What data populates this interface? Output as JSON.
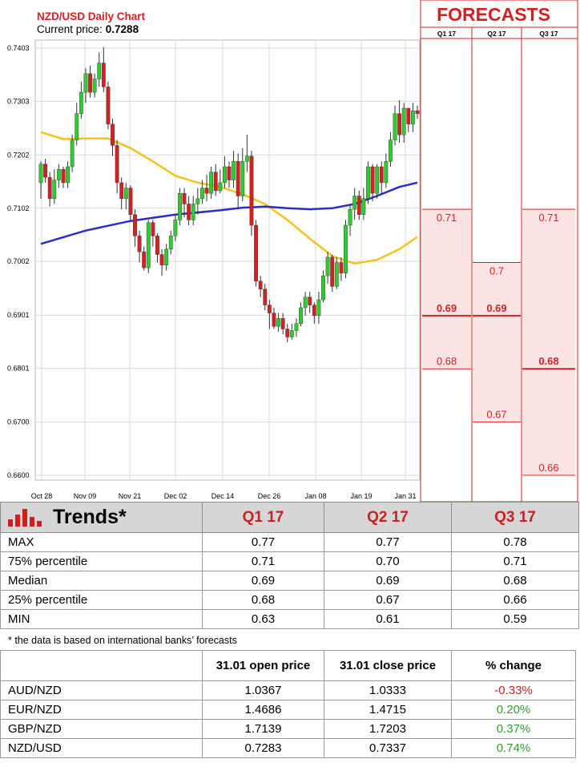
{
  "chart": {
    "title": "NZD/USD Daily Chart",
    "price_label": "Current price:",
    "price_value": "0.7288",
    "y_ticks": [
      "0.7403",
      "0.7303",
      "0.7202",
      "0.7102",
      "0.7002",
      "0.6901",
      "0.6801",
      "0.6700",
      "0.6600"
    ],
    "x_ticks": [
      "Oct 28",
      "Nov 09",
      "Nov 21",
      "Dec 02",
      "Dec 14",
      "Dec 26",
      "Jan 08",
      "Jan 19",
      "Jan 31"
    ]
  },
  "chart_data": [
    {
      "type": "candlestick",
      "title": "NZD/USD Daily Chart",
      "ylim": [
        0.658,
        0.742
      ],
      "candles": [
        [
          0.715,
          0.7185,
          0.712,
          0.719
        ],
        [
          0.7185,
          0.716,
          0.715,
          0.7195
        ],
        [
          0.716,
          0.712,
          0.7105,
          0.717
        ],
        [
          0.712,
          0.7155,
          0.711,
          0.7175
        ],
        [
          0.7155,
          0.7175,
          0.714,
          0.7185
        ],
        [
          0.7175,
          0.715,
          0.714,
          0.718
        ],
        [
          0.715,
          0.718,
          0.714,
          0.719
        ],
        [
          0.718,
          0.723,
          0.717,
          0.724
        ],
        [
          0.723,
          0.728,
          0.722,
          0.73
        ],
        [
          0.728,
          0.732,
          0.727,
          0.734
        ],
        [
          0.732,
          0.7355,
          0.73,
          0.7365
        ],
        [
          0.7355,
          0.732,
          0.731,
          0.737
        ],
        [
          0.732,
          0.7345,
          0.731,
          0.7355
        ],
        [
          0.7345,
          0.7375,
          0.733,
          0.7395
        ],
        [
          0.7375,
          0.733,
          0.732,
          0.7405
        ],
        [
          0.733,
          0.726,
          0.725,
          0.734
        ],
        [
          0.726,
          0.722,
          0.72,
          0.727
        ],
        [
          0.722,
          0.715,
          0.713,
          0.723
        ],
        [
          0.715,
          0.712,
          0.71,
          0.716
        ],
        [
          0.712,
          0.714,
          0.71,
          0.715
        ],
        [
          0.714,
          0.709,
          0.708,
          0.7145
        ],
        [
          0.709,
          0.705,
          0.703,
          0.71
        ],
        [
          0.705,
          0.702,
          0.7,
          0.706
        ],
        [
          0.702,
          0.699,
          0.6985,
          0.703
        ],
        [
          0.699,
          0.7075,
          0.698,
          0.708
        ],
        [
          0.7075,
          0.705,
          0.703,
          0.708
        ],
        [
          0.705,
          0.7015,
          0.7,
          0.7055
        ],
        [
          0.7015,
          0.6995,
          0.6975,
          0.7025
        ],
        [
          0.6995,
          0.7025,
          0.6985,
          0.7035
        ],
        [
          0.7025,
          0.705,
          0.7015,
          0.706
        ],
        [
          0.705,
          0.708,
          0.704,
          0.709
        ],
        [
          0.708,
          0.713,
          0.707,
          0.714
        ],
        [
          0.713,
          0.711,
          0.7085,
          0.714
        ],
        [
          0.711,
          0.708,
          0.707,
          0.7125
        ],
        [
          0.708,
          0.711,
          0.707,
          0.7125
        ],
        [
          0.711,
          0.712,
          0.709,
          0.714
        ],
        [
          0.712,
          0.714,
          0.711,
          0.7155
        ],
        [
          0.714,
          0.713,
          0.7115,
          0.7165
        ],
        [
          0.713,
          0.717,
          0.712,
          0.718
        ],
        [
          0.717,
          0.7135,
          0.7125,
          0.7185
        ],
        [
          0.7135,
          0.715,
          0.713,
          0.7175
        ],
        [
          0.715,
          0.718,
          0.714,
          0.72
        ],
        [
          0.718,
          0.7155,
          0.714,
          0.719
        ],
        [
          0.7155,
          0.719,
          0.714,
          0.721
        ],
        [
          0.719,
          0.7125,
          0.71,
          0.7205
        ],
        [
          0.7125,
          0.719,
          0.7115,
          0.7215
        ],
        [
          0.719,
          0.72,
          0.717,
          0.724
        ],
        [
          0.72,
          0.707,
          0.705,
          0.721
        ],
        [
          0.707,
          0.6965,
          0.6955,
          0.708
        ],
        [
          0.6965,
          0.695,
          0.6935,
          0.6975
        ],
        [
          0.695,
          0.692,
          0.691,
          0.696
        ],
        [
          0.692,
          0.6905,
          0.6875,
          0.693
        ],
        [
          0.6905,
          0.688,
          0.6875,
          0.6915
        ],
        [
          0.688,
          0.6895,
          0.687,
          0.6905
        ],
        [
          0.6895,
          0.6875,
          0.6865,
          0.6905
        ],
        [
          0.6875,
          0.686,
          0.685,
          0.6885
        ],
        [
          0.686,
          0.6872,
          0.6855,
          0.6885
        ],
        [
          0.6872,
          0.6885,
          0.686,
          0.6895
        ],
        [
          0.6885,
          0.6915,
          0.688,
          0.6925
        ],
        [
          0.6915,
          0.6935,
          0.69,
          0.6945
        ],
        [
          0.6935,
          0.692,
          0.6905,
          0.6945
        ],
        [
          0.692,
          0.69,
          0.6885,
          0.6925
        ],
        [
          0.69,
          0.693,
          0.6885,
          0.6945
        ],
        [
          0.693,
          0.6975,
          0.6925,
          0.6985
        ],
        [
          0.6975,
          0.701,
          0.696,
          0.702
        ],
        [
          0.701,
          0.6955,
          0.6945,
          0.7015
        ],
        [
          0.6955,
          0.7,
          0.695,
          0.701
        ],
        [
          0.7,
          0.698,
          0.6965,
          0.701
        ],
        [
          0.698,
          0.707,
          0.697,
          0.708
        ],
        [
          0.707,
          0.71,
          0.705,
          0.711
        ],
        [
          0.71,
          0.7125,
          0.708,
          0.714
        ],
        [
          0.7125,
          0.709,
          0.708,
          0.7135
        ],
        [
          0.709,
          0.712,
          0.708,
          0.714
        ],
        [
          0.712,
          0.718,
          0.711,
          0.719
        ],
        [
          0.718,
          0.713,
          0.7115,
          0.7185
        ],
        [
          0.713,
          0.718,
          0.712,
          0.7185
        ],
        [
          0.718,
          0.715,
          0.713,
          0.719
        ],
        [
          0.715,
          0.719,
          0.714,
          0.7205
        ],
        [
          0.719,
          0.723,
          0.718,
          0.7245
        ],
        [
          0.723,
          0.728,
          0.722,
          0.7295
        ],
        [
          0.728,
          0.724,
          0.7225,
          0.7305
        ],
        [
          0.724,
          0.729,
          0.7225,
          0.73
        ],
        [
          0.729,
          0.726,
          0.7245,
          0.729
        ],
        [
          0.726,
          0.7285,
          0.7245,
          0.73
        ],
        [
          0.7285,
          0.728,
          0.727,
          0.7295
        ]
      ],
      "series": [
        {
          "name": "",
          "color": "#f5c21b",
          "x": [
            0,
            5,
            10,
            15,
            20,
            25,
            30,
            35,
            40,
            45,
            50,
            55,
            60,
            65,
            70,
            75,
            80,
            84
          ],
          "values": [
            0.7245,
            0.7232,
            0.7233,
            0.7233,
            0.7215,
            0.719,
            0.7163,
            0.715,
            0.7142,
            0.7128,
            0.711,
            0.708,
            0.7045,
            0.7012,
            0.6998,
            0.7005,
            0.7025,
            0.7048
          ]
        },
        {
          "name": "",
          "color": "#2c2cc8",
          "x": [
            0,
            10,
            20,
            30,
            40,
            45,
            50,
            55,
            60,
            65,
            70,
            75,
            80,
            84
          ],
          "values": [
            0.7035,
            0.706,
            0.7078,
            0.709,
            0.7098,
            0.7103,
            0.7105,
            0.7102,
            0.71,
            0.7102,
            0.711,
            0.7125,
            0.7142,
            0.715
          ]
        }
      ]
    },
    {
      "type": "bar",
      "title": "FORECASTS",
      "categories": [
        "Q1 17",
        "Q2 17",
        "Q3 17"
      ],
      "ylim": [
        0.658,
        0.742
      ],
      "ranges": [
        {
          "high": 0.71,
          "median": 0.69,
          "low": 0.68
        },
        {
          "high": 0.7,
          "median": 0.69,
          "low": 0.67
        },
        {
          "high": 0.71,
          "median": 0.68,
          "low": 0.66
        }
      ]
    }
  ],
  "forecast": {
    "title": "FORECASTS",
    "columns": [
      "Q1 17",
      "Q2 17",
      "Q3 17"
    ],
    "labels": [
      {
        "high": "0.71",
        "median": "0.69",
        "low": "0.68"
      },
      {
        "high": "0.7",
        "median": "0.69",
        "low": "0.67"
      },
      {
        "high": "0.71",
        "median": "0.68",
        "low": "0.66"
      }
    ]
  },
  "trends": {
    "title": "Trends*",
    "columns": [
      "Q1 17",
      "Q2 17",
      "Q3 17"
    ],
    "rows": [
      {
        "label": "MAX",
        "values": [
          "0.77",
          "0.77",
          "0.78"
        ]
      },
      {
        "label": "75% percentile",
        "values": [
          "0.71",
          "0.70",
          "0.71"
        ]
      },
      {
        "label": "Median",
        "values": [
          "0.69",
          "0.69",
          "0.68"
        ]
      },
      {
        "label": "25% percentile",
        "values": [
          "0.68",
          "0.67",
          "0.66"
        ]
      },
      {
        "label": "MIN",
        "values": [
          "0.63",
          "0.61",
          "0.59"
        ]
      }
    ],
    "footnote": "* the data is based on international banks’ forecasts"
  },
  "prices": {
    "columns": [
      "31.01 open price",
      "31.01 close price",
      "% change"
    ],
    "rows": [
      {
        "pair": "AUD/NZD",
        "open": "1.0367",
        "close": "1.0333",
        "change": "-0.33%"
      },
      {
        "pair": "EUR/NZD",
        "open": "1.4686",
        "close": "1.4715",
        "change": "0.20%"
      },
      {
        "pair": "GBP/NZD",
        "open": "1.7139",
        "close": "1.7203",
        "change": "0.37%"
      },
      {
        "pair": "NZD/USD",
        "open": "0.7283",
        "close": "0.7337",
        "change": "0.74%"
      }
    ]
  },
  "colors": {
    "up": "#2ecc2e",
    "down": "#d42020",
    "accent": "#d42020",
    "forecast_fill": "#fde4e4"
  }
}
